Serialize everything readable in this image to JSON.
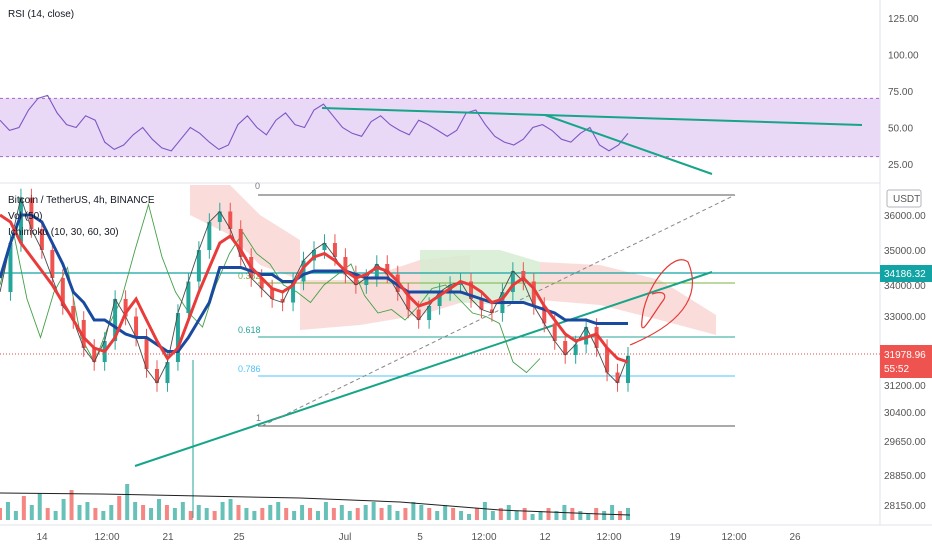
{
  "colors": {
    "rsi_line": "#7e57c2",
    "rsi_band": "#e9d9f7",
    "trend": "#17a589",
    "price_up": "#26a69a",
    "price_down": "#ef5350",
    "tenkan": "#ea3b3b",
    "kijun": "#1a4aa0",
    "chikou": "#43a047",
    "cloud_up": "#d6ecd2",
    "cloud_down": "#f9d7d5",
    "fib_line": "#5a9e9c",
    "last_price": "#e64a4a",
    "level": "#12a4a4"
  },
  "rsi": {
    "label": "RSI (14, close)",
    "scale_ticks": [
      "125.00",
      "100.00",
      "75.00",
      "50.00",
      "25.00"
    ]
  },
  "legend": {
    "symbol": "Bitcoin / TetherUS, 4h, BINANCE",
    "vol": "Vol (50)",
    "ichimoku": "Ichimoku (10, 30, 60, 30)"
  },
  "price_axis": {
    "currency": "USDT",
    "ticks": [
      "36000.00",
      "35000.00",
      "34000.00",
      "33000.00",
      "31200.00",
      "30400.00",
      "29650.00",
      "28850.00",
      "28150.00"
    ]
  },
  "tags": {
    "level_value": "34186.32",
    "last_value": "31978.96",
    "countdown": "55:52"
  },
  "fib_labels": [
    "0",
    "0.382",
    "0.618",
    "0.786",
    "1"
  ],
  "time_axis": [
    "14",
    "12:00",
    "21",
    "25",
    "Jul",
    "5",
    "12:00",
    "12",
    "12:00",
    "19",
    "12:00",
    "26"
  ],
  "chart_data": [
    {
      "type": "line",
      "title": "RSI (14, close)",
      "ylim": [
        10,
        135
      ],
      "ytick_labels": [
        "125.00",
        "100.00",
        "75.00",
        "50.00",
        "25.00"
      ],
      "band": [
        30,
        70
      ],
      "series": [
        {
          "values": [
            55,
            48,
            50,
            62,
            70,
            72,
            60,
            52,
            50,
            58,
            55,
            40,
            35,
            38,
            45,
            50,
            42,
            36,
            34,
            42,
            50,
            46,
            40,
            35,
            38,
            52,
            58,
            50,
            45,
            55,
            60,
            52,
            50,
            62,
            66,
            58,
            50,
            46,
            44,
            54,
            58,
            52,
            48,
            45,
            55,
            52,
            48,
            44,
            48,
            60,
            62,
            52,
            44,
            40,
            38,
            42,
            50,
            52,
            48,
            42,
            40,
            46,
            50,
            38,
            34,
            38,
            46
          ]
        }
      ]
    },
    {
      "type": "line",
      "title": "Bitcoin / TetherUS, 4h, BINANCE",
      "ylim": [
        28000,
        37000
      ],
      "ytick_labels": [
        "36000.00",
        "35000.00",
        "34000.00",
        "33000.00",
        "31200.00",
        "30400.00",
        "29650.00",
        "28850.00",
        "28150.00"
      ],
      "xtick_labels": [
        "14",
        "12:00",
        "21",
        "25",
        "Jul",
        "5",
        "12:00",
        "12",
        "12:00",
        "19",
        "12:00",
        "26"
      ],
      "horizontal_levels": [
        34186.32,
        31978.96
      ],
      "series": [
        {
          "name": "Price",
          "values": [
            33800,
            35200,
            36500,
            35600,
            35000,
            34200,
            33400,
            33000,
            32200,
            31800,
            32400,
            33600,
            33100,
            32500,
            31600,
            31200,
            31800,
            33200,
            34100,
            35000,
            35800,
            36100,
            35600,
            34800,
            34200,
            33900,
            33600,
            33500,
            34100,
            34700,
            35000,
            35200,
            34800,
            34300,
            34000,
            34200,
            34600,
            34300,
            33800,
            33300,
            33000,
            33400,
            33800,
            34000,
            34100,
            33600,
            33300,
            33200,
            33800,
            34400,
            34100,
            33400,
            32900,
            32400,
            32000,
            32300,
            32800,
            32200,
            31500,
            31200,
            31978
          ]
        },
        {
          "name": "Tenkan",
          "values": [
            36000,
            35800,
            35200,
            34800,
            34400,
            34000,
            33500,
            33000,
            32500,
            32200,
            32100,
            32500,
            33200,
            33600,
            33000,
            32400,
            31900,
            32200,
            33000,
            33800,
            34500,
            35200,
            35400,
            35000,
            34500,
            34200,
            33900,
            33800,
            34000,
            34500,
            34800,
            34900,
            34700,
            34400,
            34200,
            34300,
            34500,
            34400,
            34100,
            33700,
            33400,
            33500,
            33700,
            33900,
            34100,
            34000,
            33800,
            33500,
            33600,
            34000,
            34200,
            33900,
            33400,
            33000,
            32600,
            32400,
            32500,
            32600,
            32200,
            31900,
            31800
          ]
        },
        {
          "name": "Kijun",
          "values": [
            34200,
            35200,
            36000,
            36000,
            35800,
            35200,
            34600,
            33800,
            33500,
            33000,
            33000,
            32800,
            32600,
            32500,
            32500,
            32300,
            32100,
            32100,
            32500,
            33000,
            33500,
            34500,
            34500,
            34500,
            34400,
            34300,
            34300,
            34100,
            34100,
            34300,
            34400,
            34400,
            34400,
            34400,
            34300,
            34200,
            34200,
            34200,
            34000,
            33800,
            33800,
            33800,
            33800,
            33800,
            33800,
            33700,
            33600,
            33500,
            33500,
            33500,
            33500,
            33400,
            33300,
            33200,
            33000,
            33000,
            33000,
            32900,
            32900,
            32900,
            32900
          ]
        },
        {
          "name": "Chikou",
          "values": [
            34000,
            35500,
            33600,
            32500,
            33800,
            34500,
            32500,
            31800,
            32800,
            33600,
            35000,
            36300,
            34800,
            33800,
            33200,
            32800,
            34000,
            34900,
            35500,
            34900,
            34600,
            34000,
            33800,
            33500,
            34000,
            34300,
            34600,
            33700,
            33200,
            33300,
            33000,
            33400,
            33900,
            34000,
            33600,
            33200,
            33100,
            32900,
            31800,
            31500,
            31900
          ]
        }
      ]
    },
    {
      "type": "bar",
      "title": "Vol (50)",
      "values": [
        4,
        6,
        3,
        8,
        5,
        9,
        4,
        3,
        7,
        10,
        5,
        6,
        4,
        3,
        5,
        8,
        12,
        6,
        5,
        4,
        7,
        5,
        4,
        6,
        3,
        5,
        4,
        3,
        6,
        7,
        5,
        4,
        3,
        4,
        5,
        6,
        4,
        3,
        5,
        4,
        3,
        6,
        4,
        5,
        3,
        4,
        5,
        6,
        4,
        5,
        3,
        4,
        6,
        5,
        4,
        3,
        5,
        4,
        3,
        2,
        4,
        6,
        3,
        4,
        5,
        3,
        4,
        2,
        3,
        4,
        3,
        5,
        4,
        3,
        2,
        4,
        3,
        5,
        3,
        4
      ]
    }
  ]
}
